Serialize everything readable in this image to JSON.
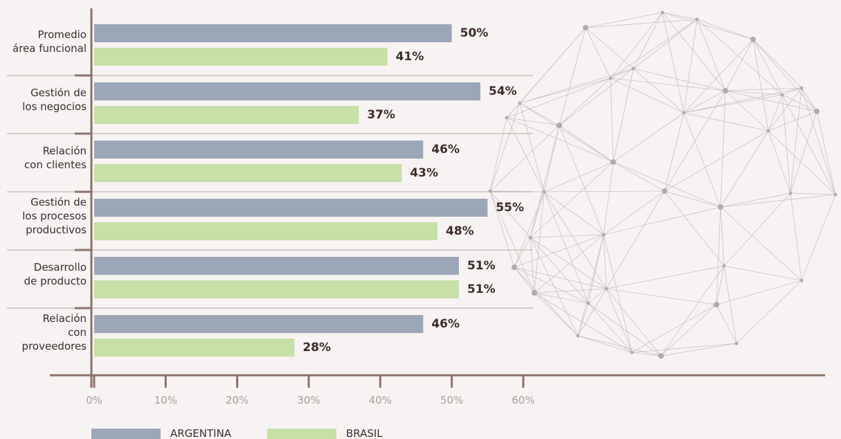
{
  "chart_data": {
    "type": "bar",
    "orientation": "horizontal",
    "categories": [
      "Promedio\nárea funcional",
      "Gestión de\nlos negocios",
      "Relación\ncon clientes",
      "Gestión de\nlos procesos\nproductivos",
      "Desarrollo\nde producto",
      "Relación\ncon\nproveedores"
    ],
    "series": [
      {
        "name": "ARGENTINA",
        "color": "#9ba6b9",
        "values": [
          50,
          54,
          46,
          55,
          51,
          46
        ],
        "value_labels": [
          "50%",
          "54%",
          "46%",
          "55%",
          "51%",
          "46%"
        ]
      },
      {
        "name": "BRASIL",
        "color": "#c6e0a5",
        "values": [
          41,
          37,
          43,
          48,
          51,
          28
        ],
        "value_labels": [
          "41%",
          "37%",
          "43%",
          "48%",
          "51%",
          "28%"
        ]
      }
    ],
    "xlim": [
      0,
      60
    ],
    "xticks": [
      {
        "value": 0,
        "label": "0%"
      },
      {
        "value": 10,
        "label": "10%"
      },
      {
        "value": 20,
        "label": "20%"
      },
      {
        "value": 30,
        "label": "30%"
      },
      {
        "value": 40,
        "label": "40%"
      },
      {
        "value": 50,
        "label": "50%"
      },
      {
        "value": 60,
        "label": "60%"
      }
    ],
    "legend": "bottom-left"
  }
}
